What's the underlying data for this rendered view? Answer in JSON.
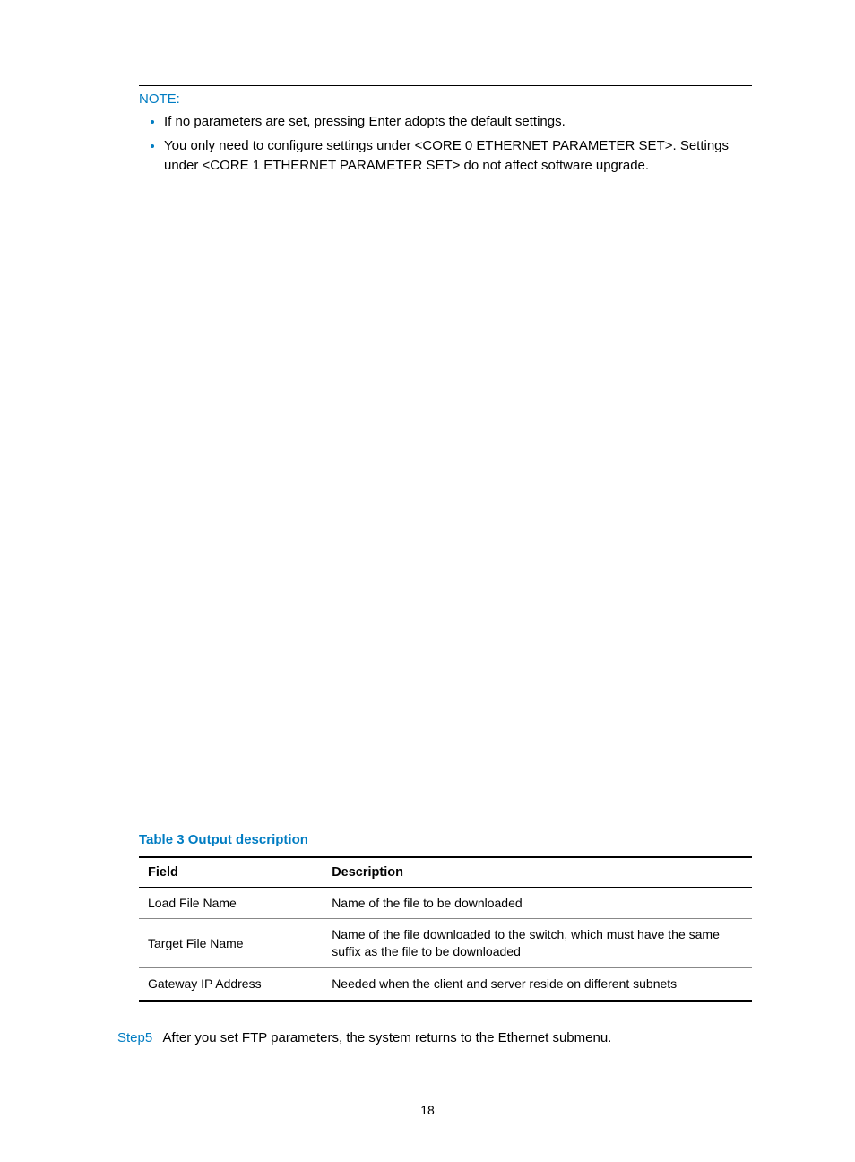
{
  "note": {
    "title": "NOTE:",
    "items": [
      "If no parameters are set, pressing Enter adopts the default settings.",
      "You only need to configure settings under <CORE 0 ETHERNET PARAMETER SET>. Settings under <CORE 1 ETHERNET PARAMETER SET> do not affect software upgrade."
    ]
  },
  "table": {
    "title": "Table 3 Output description",
    "columns": [
      "Field",
      "Description"
    ],
    "rows": [
      [
        "Load File Name",
        "Name of the file to be downloaded"
      ],
      [
        "Target File Name",
        "Name of the file downloaded to the switch, which must have the same suffix as the file to be downloaded"
      ],
      [
        "Gateway IP Address",
        "Needed when the client and server reside on different subnets"
      ]
    ]
  },
  "step": {
    "label": "Step5",
    "text": "After you set FTP parameters, the system returns to the Ethernet submenu."
  },
  "pageNumber": "18",
  "colors": {
    "accent": "#007cc2",
    "text": "#000000",
    "background": "#ffffff"
  }
}
